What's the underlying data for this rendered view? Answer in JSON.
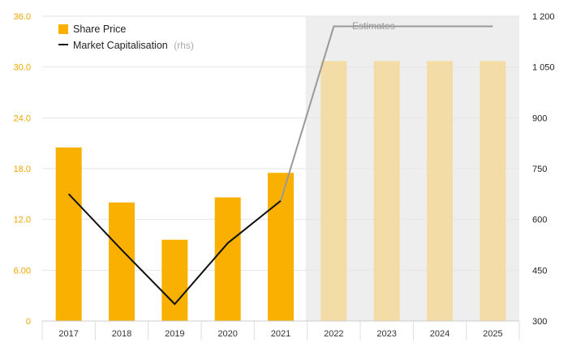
{
  "chart_data": {
    "type": "bar",
    "categories": [
      "2017",
      "2018",
      "2019",
      "2020",
      "2021",
      "2022",
      "2023",
      "2024",
      "2025"
    ],
    "series": [
      {
        "name": "Share Price",
        "kind": "bar",
        "axis": "left",
        "color": "#f9b000",
        "estimate_color": "#f3dca6",
        "values": [
          20.5,
          14.0,
          9.6,
          14.6,
          17.5,
          30.7,
          30.7,
          30.7,
          30.7
        ]
      },
      {
        "name": "Market Capitalisation",
        "name_suffix": "(rhs)",
        "kind": "line",
        "axis": "right",
        "color": "#111111",
        "estimate_color": "#999999",
        "values": [
          675,
          510,
          350,
          530,
          655,
          1170,
          1170,
          1170,
          1170
        ]
      }
    ],
    "estimates_label": "Estimates",
    "estimates_start_index": 5,
    "yleft": {
      "lim": [
        0,
        36
      ],
      "ticks": [
        0,
        6,
        12,
        18,
        24,
        30,
        36
      ],
      "tick_labels": [
        "0",
        "6.00",
        "12.0",
        "18.0",
        "24.0",
        "30.0",
        "36.0"
      ],
      "color": "#f0a500"
    },
    "yright": {
      "lim": [
        300,
        1200
      ],
      "ticks": [
        300,
        450,
        600,
        750,
        900,
        1050,
        1200
      ],
      "tick_labels": [
        "300",
        "450",
        "600",
        "750",
        "900",
        "1 050",
        "1 200"
      ]
    },
    "grid": true,
    "legend_position": "top-left"
  }
}
